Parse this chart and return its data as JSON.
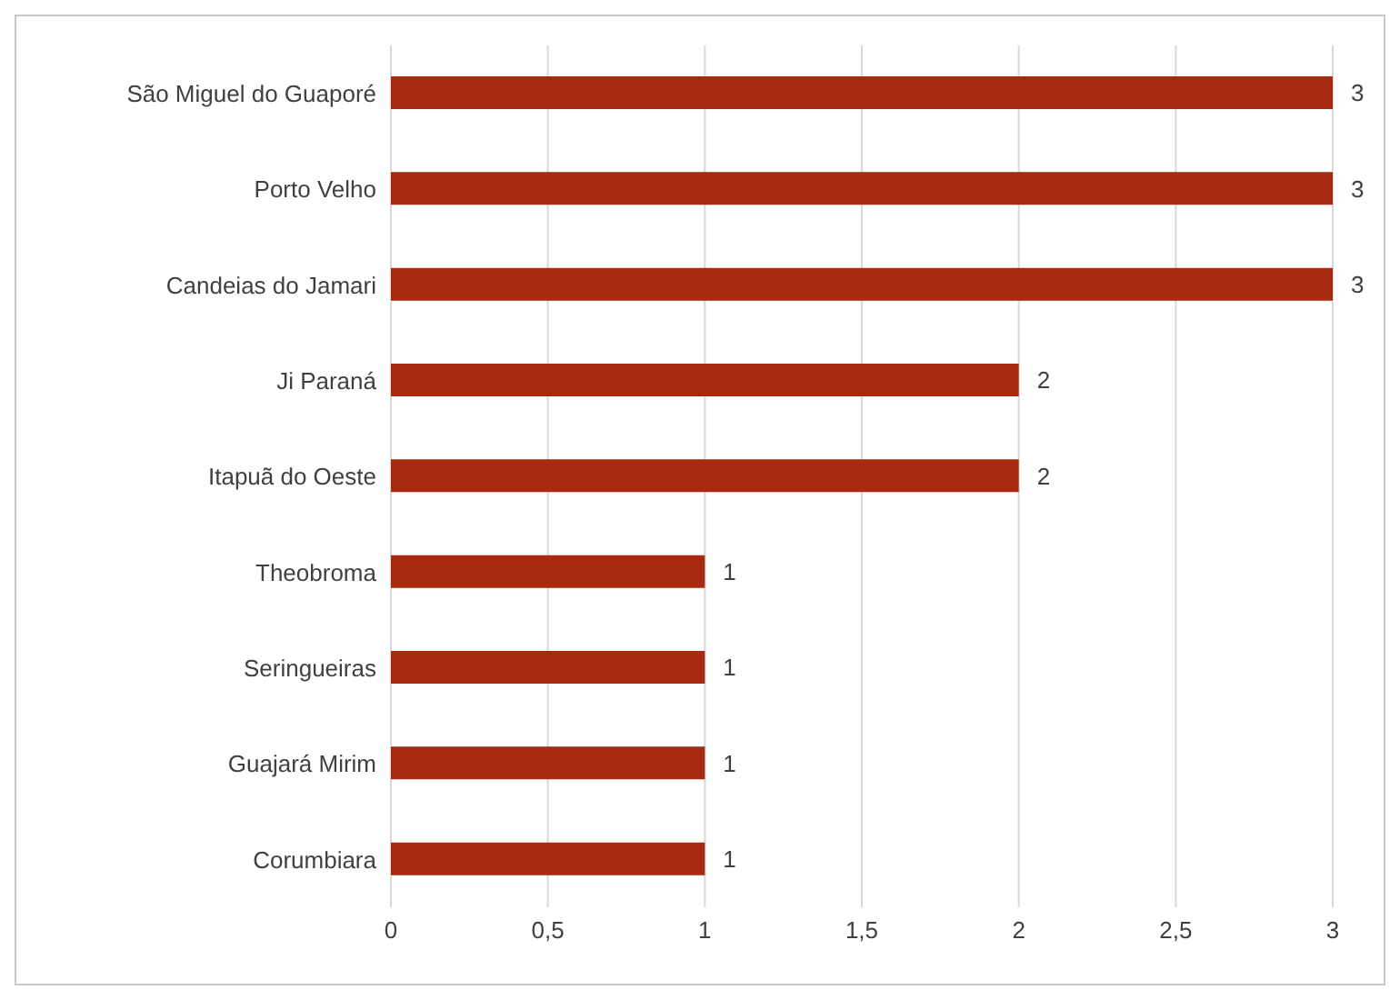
{
  "chart_data": {
    "type": "bar",
    "orientation": "horizontal",
    "categories": [
      "São Miguel do Guaporé",
      "Porto Velho",
      "Candeias do Jamari",
      "Ji Paraná",
      "Itapuã do Oeste",
      "Theobroma",
      "Seringueiras",
      "Guajará Mirim",
      "Corumbiara"
    ],
    "values": [
      3,
      3,
      3,
      2,
      2,
      1,
      1,
      1,
      1
    ],
    "color": "#a52a0f",
    "xlim": [
      0,
      3
    ],
    "xticks": [
      0,
      {
        "value": 0.5,
        "label": "0,5"
      },
      1,
      {
        "value": 1.5,
        "label": "1,5"
      },
      2,
      {
        "value": 2.5,
        "label": "2,5"
      },
      3
    ],
    "grid": "x",
    "data_labels": true
  }
}
